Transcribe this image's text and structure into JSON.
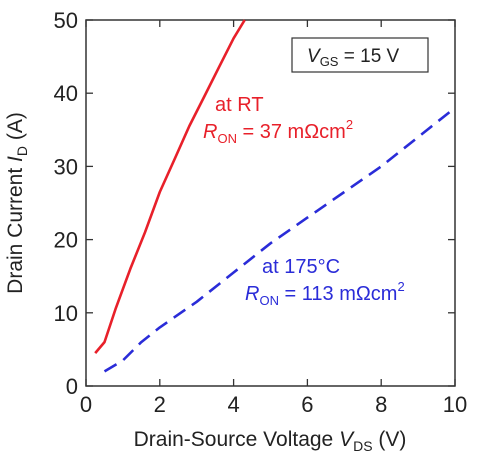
{
  "chart_data": {
    "type": "line",
    "xlabel": {
      "text": "Drain-Source Voltage ",
      "symbol": "V",
      "subscript": "DS",
      "unit": " (V)"
    },
    "ylabel": {
      "text": "Drain Current ",
      "symbol": "I",
      "subscript": "D",
      "unit": " (A)"
    },
    "xlim": [
      0,
      10
    ],
    "ylim": [
      0,
      50
    ],
    "xticks": [
      0,
      2,
      4,
      6,
      8,
      10
    ],
    "yticks": [
      0,
      10,
      20,
      30,
      40,
      50
    ],
    "grid": false,
    "legend": {
      "symbol": "V",
      "subscript": "GS",
      "text": " = 15 V",
      "position": "top-right"
    },
    "series": [
      {
        "color": "#e8202a",
        "dash": "solid",
        "x": [
          0.25,
          0.5,
          0.8,
          1.2,
          1.6,
          2.0,
          2.4,
          2.8,
          3.2,
          3.6,
          4.0,
          4.3
        ],
        "y": [
          4.5,
          6.0,
          10.5,
          16.0,
          21.0,
          26.5,
          31.0,
          35.5,
          39.5,
          43.5,
          47.5,
          50.0
        ],
        "label": {
          "line1": "at RT",
          "symbol": "R",
          "subscript": "ON",
          "eq": " = 37 mΩcm",
          "sup": "2"
        }
      },
      {
        "color": "#2a2cd8",
        "dash": "dashed",
        "x": [
          0.5,
          1.0,
          1.5,
          2.0,
          3.0,
          4.0,
          5.0,
          6.0,
          7.0,
          8.0,
          9.0,
          10.0
        ],
        "y": [
          2.0,
          3.5,
          6.0,
          8.0,
          11.5,
          15.5,
          19.5,
          23.0,
          26.5,
          30.0,
          34.0,
          38.0
        ],
        "label": {
          "line1": "at 175°C",
          "symbol": "R",
          "subscript": "ON",
          "eq": " = 113 mΩcm",
          "sup": "2"
        }
      }
    ]
  }
}
